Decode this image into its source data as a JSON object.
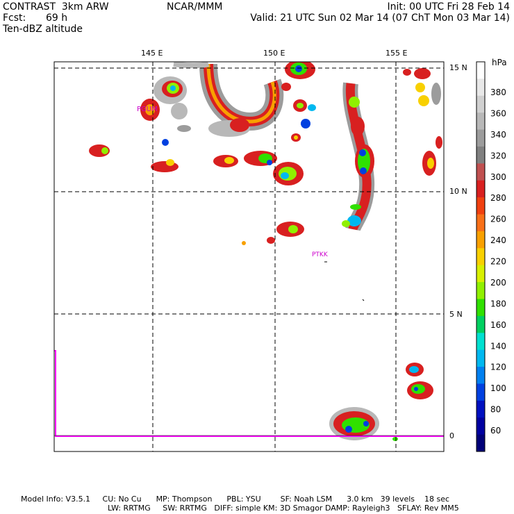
{
  "header": {
    "model": "CONTRAST  3km ARW",
    "org": "NCAR/MMM",
    "init": "Init: 00 UTC Fri 28 Feb 14",
    "fcst_label": "Fcst:",
    "fcst_value": "69 h",
    "valid": "Valid: 21 UTC Sun 02 Mar 14 (07 ChT Mon 03 Mar 14)",
    "field": "Ten-dBZ altitude"
  },
  "map": {
    "lon_labels": [
      "145 E",
      "150 E",
      "155 E"
    ],
    "lat_labels": [
      "15 N",
      "10 N",
      "5 N",
      "0"
    ],
    "stations": [
      "PGUM",
      "PTKK"
    ]
  },
  "colorbar": {
    "units": "hPa",
    "levels": [
      "380",
      "360",
      "340",
      "320",
      "300",
      "280",
      "260",
      "240",
      "220",
      "200",
      "180",
      "160",
      "140",
      "120",
      "100",
      "80",
      "60"
    ],
    "colors": [
      "#ffffff",
      "#e8e8e8",
      "#d0d0d0",
      "#b8b8b8",
      "#9c9c9c",
      "#808080",
      "#c05050",
      "#d82020",
      "#f04010",
      "#f87018",
      "#f8a000",
      "#f8d000",
      "#d8f000",
      "#90f000",
      "#30e000",
      "#00d060",
      "#00e0d0",
      "#00b8f0",
      "#0080f0",
      "#0040e0",
      "#0010c0",
      "#0000a0",
      "#000078"
    ]
  },
  "footer": {
    "line1": "Model Info: V3.5.1     CU: No Cu      MP: Thompson      PBL: YSU        SF: Noah LSM      3.0 km   39 levels    18 sec",
    "line2": "LW: RRTMG     SW: RRTMG   DIFF: simple KM: 3D Smagor DAMP: Rayleigh3   SFLAY: Rev MM5"
  }
}
